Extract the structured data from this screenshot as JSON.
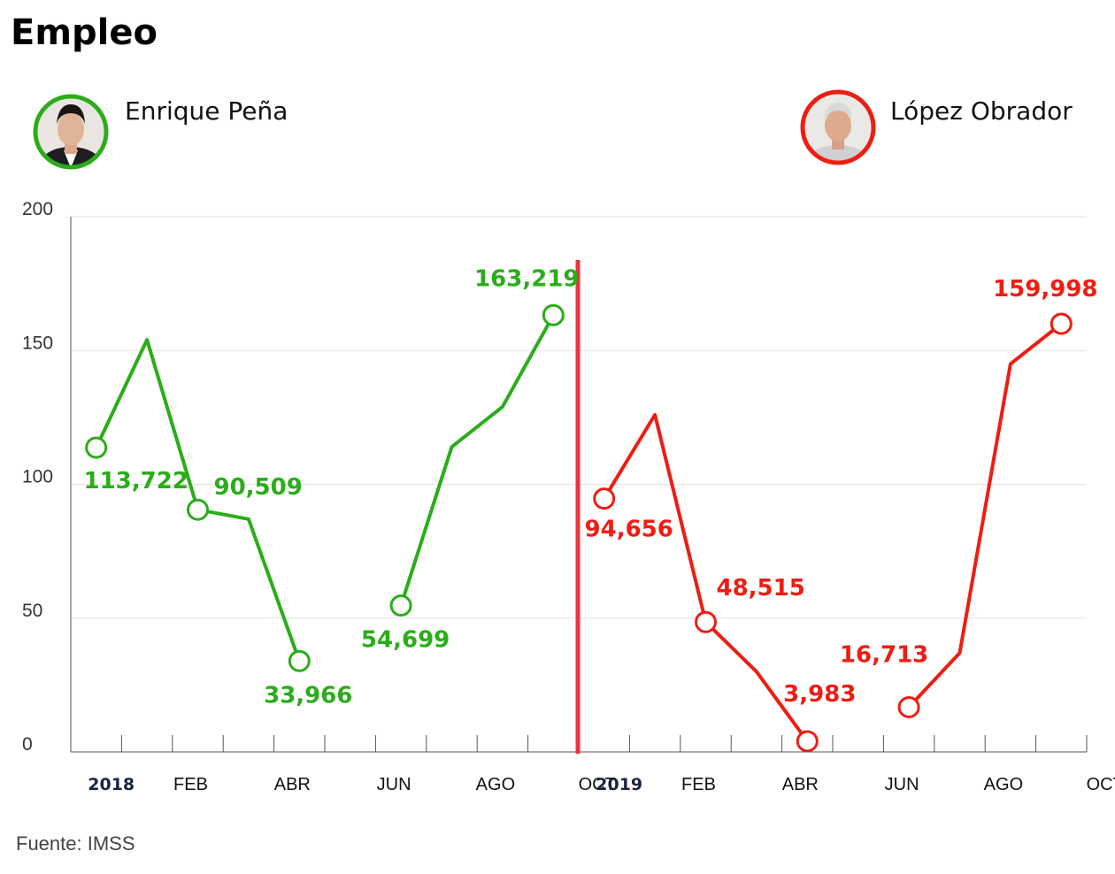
{
  "chart_data": {
    "type": "line",
    "title": "Empleo",
    "source": "Fuente: IMSS",
    "ylim": [
      0,
      200
    ],
    "yticks": [
      0,
      50,
      100,
      150,
      200
    ],
    "grid": true,
    "x_tick_labels": [
      {
        "text": "2018",
        "year": true
      },
      {
        "text": "FEB"
      },
      {
        "text": "ABR"
      },
      {
        "text": "JUN"
      },
      {
        "text": "AGO"
      },
      {
        "text": "OCT"
      },
      {
        "text": "2019",
        "year": true
      },
      {
        "text": "FEB"
      },
      {
        "text": "ABR"
      },
      {
        "text": "JUN"
      },
      {
        "text": "AGO"
      },
      {
        "text": "OCT"
      }
    ],
    "series": [
      {
        "name": "Enrique Peña",
        "color": "#2aad19",
        "x": [
          "2018-01",
          "2018-02",
          "2018-03",
          "2018-04",
          "2018-05",
          "2018-06",
          "2018-07",
          "2018-08",
          "2018-09",
          "2018-10"
        ],
        "values": [
          113.722,
          154,
          90.509,
          87,
          33.966,
          null,
          54.699,
          114,
          129,
          163.219
        ],
        "labels": [
          "113,722",
          null,
          "90,509",
          null,
          "33,966",
          null,
          "54,699",
          null,
          null,
          "163,219"
        ]
      },
      {
        "name": "López Obrador",
        "color": "#ee1d12",
        "x": [
          "2019-01",
          "2019-02",
          "2019-03",
          "2019-04",
          "2019-05",
          "2019-06",
          "2019-07",
          "2019-08",
          "2019-09",
          "2019-10"
        ],
        "values": [
          94.656,
          126,
          48.515,
          30,
          3.983,
          null,
          16.713,
          37,
          145,
          159.998
        ],
        "labels": [
          "94,656",
          null,
          "48,515",
          null,
          "3,983",
          null,
          "16,713",
          null,
          null,
          "159,998"
        ]
      }
    ],
    "divider_color": "#e8343c",
    "icons": [
      "portrait-icon-pena",
      "portrait-icon-obrador"
    ]
  }
}
